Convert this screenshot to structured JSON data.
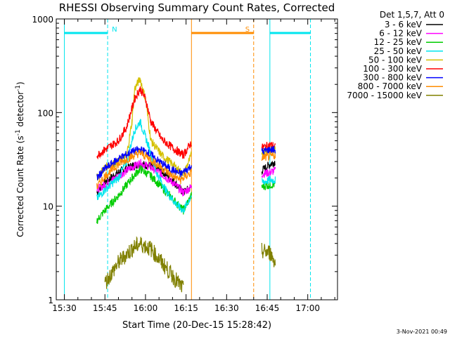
{
  "chart_data": {
    "type": "line",
    "title": "RHESSI Observing Summary Count Rates, Corrected",
    "xlabel": "Start Time (20-Dec-15 15:28:42)",
    "ylabel_main": "Corrected Count Rate (s",
    "ylabel_sup1": "-1",
    "ylabel_mid": " detector",
    "ylabel_sup2": "-1",
    "ylabel_end": ")",
    "yscale": "log",
    "ylim": [
      1,
      1000
    ],
    "xlim_minutes": [
      15.49,
      16.18
    ],
    "x_tick_labels": [
      "15:30",
      "15:45",
      "16:00",
      "16:15",
      "16:30",
      "16:45",
      "17:00"
    ],
    "x_tick_minutes": [
      15.5,
      15.75,
      16.0,
      16.25,
      16.5,
      16.75,
      17.0
    ],
    "y_tick_labels": [
      "1",
      "10",
      "100",
      "1000"
    ],
    "y_tick_values": [
      1,
      10,
      100,
      1000
    ],
    "legend_header": "Det 1,5,7, Att 0",
    "legend_position": "outside-right",
    "footer_date": "3-Nov-2021 00:49",
    "flags": [
      {
        "label": "N",
        "color": "#00e5ee",
        "start": "15:30",
        "end": "15:46"
      },
      {
        "label": "S",
        "color": "#ff8c00",
        "start": "16:17",
        "end": "16:40"
      },
      {
        "label": "",
        "color": "#00e5ee",
        "start": "16:46",
        "end": "17:01"
      }
    ],
    "series": [
      {
        "name": "3 - 6 keV",
        "color": "#000000",
        "x": [
          "15:42",
          "15:45",
          "15:50",
          "15:55",
          "15:58",
          "16:02",
          "16:06",
          "16:10",
          "16:14",
          "16:17",
          "16:43",
          "16:46",
          "16:48"
        ],
        "y": [
          14,
          18,
          23,
          27,
          28,
          27,
          24,
          19,
          14,
          16,
          24,
          28,
          30
        ]
      },
      {
        "name": "6 - 12 keV",
        "color": "#ff00ff",
        "x": [
          "15:42",
          "15:45",
          "15:50",
          "15:55",
          "15:58",
          "16:02",
          "16:06",
          "16:10",
          "16:14",
          "16:17",
          "16:43",
          "16:46",
          "16:48"
        ],
        "y": [
          15,
          17,
          21,
          26,
          29,
          26,
          22,
          18,
          14,
          16,
          22,
          23,
          24
        ]
      },
      {
        "name": "12 - 25 keV",
        "color": "#00cc00",
        "x": [
          "15:42",
          "15:45",
          "15:50",
          "15:55",
          "15:58",
          "16:02",
          "16:06",
          "16:10",
          "16:14",
          "16:17",
          "16:43",
          "16:46",
          "16:48"
        ],
        "y": [
          7,
          9,
          13,
          20,
          25,
          21,
          16,
          12,
          9,
          13,
          16,
          17,
          17
        ]
      },
      {
        "name": "25 - 50 keV",
        "color": "#00e5ee",
        "x": [
          "15:42",
          "15:45",
          "15:50",
          "15:53",
          "15:56",
          "15:58",
          "16:01",
          "16:04",
          "16:08",
          "16:12",
          "16:14",
          "16:17",
          "16:43",
          "16:46",
          "16:48"
        ],
        "y": [
          12,
          15,
          20,
          30,
          65,
          80,
          45,
          23,
          14,
          10,
          9,
          13,
          18,
          19,
          19
        ]
      },
      {
        "name": "50 - 100 keV",
        "color": "#d4c000",
        "x": [
          "15:42",
          "15:45",
          "15:50",
          "15:53",
          "15:55",
          "15:56",
          "15:58",
          "16:00",
          "16:02",
          "16:06",
          "16:10",
          "16:14",
          "16:17",
          "16:43",
          "16:46",
          "16:48"
        ],
        "y": [
          20,
          26,
          30,
          34,
          80,
          180,
          230,
          140,
          50,
          35,
          28,
          22,
          35,
          38,
          40,
          40
        ]
      },
      {
        "name": "100 - 300 keV",
        "color": "#ff0000",
        "x": [
          "15:42",
          "15:45",
          "15:50",
          "15:53",
          "15:56",
          "15:58",
          "16:00",
          "16:02",
          "16:06",
          "16:10",
          "16:14",
          "16:17",
          "16:43",
          "16:46",
          "16:48"
        ],
        "y": [
          35,
          40,
          50,
          70,
          140,
          180,
          140,
          80,
          52,
          42,
          35,
          48,
          42,
          45,
          44
        ]
      },
      {
        "name": "300 - 800 keV",
        "color": "#0000ff",
        "x": [
          "15:42",
          "15:45",
          "15:50",
          "15:55",
          "15:58",
          "16:01",
          "16:05",
          "16:09",
          "16:13",
          "16:17",
          "16:43",
          "16:46",
          "16:48"
        ],
        "y": [
          20,
          25,
          32,
          38,
          40,
          37,
          30,
          25,
          22,
          27,
          38,
          40,
          40
        ]
      },
      {
        "name": "800 - 7000 keV",
        "color": "#ff8c00",
        "x": [
          "15:42",
          "15:45",
          "15:50",
          "15:55",
          "15:58",
          "16:01",
          "16:05",
          "16:09",
          "16:13",
          "16:17",
          "16:43",
          "16:46",
          "16:48"
        ],
        "y": [
          16,
          21,
          28,
          34,
          37,
          33,
          27,
          22,
          19,
          23,
          33,
          34,
          35
        ]
      },
      {
        "name": "7000 - 15000 keV",
        "color": "#808000",
        "x": [
          "15:45",
          "15:50",
          "15:55",
          "15:58",
          "16:02",
          "16:06",
          "16:10",
          "16:14",
          "16:43",
          "16:46",
          "16:48"
        ],
        "y": [
          1.5,
          2.5,
          3.5,
          4,
          3.5,
          2.5,
          1.8,
          1.3,
          3.3,
          3.2,
          2.5
        ]
      }
    ]
  }
}
